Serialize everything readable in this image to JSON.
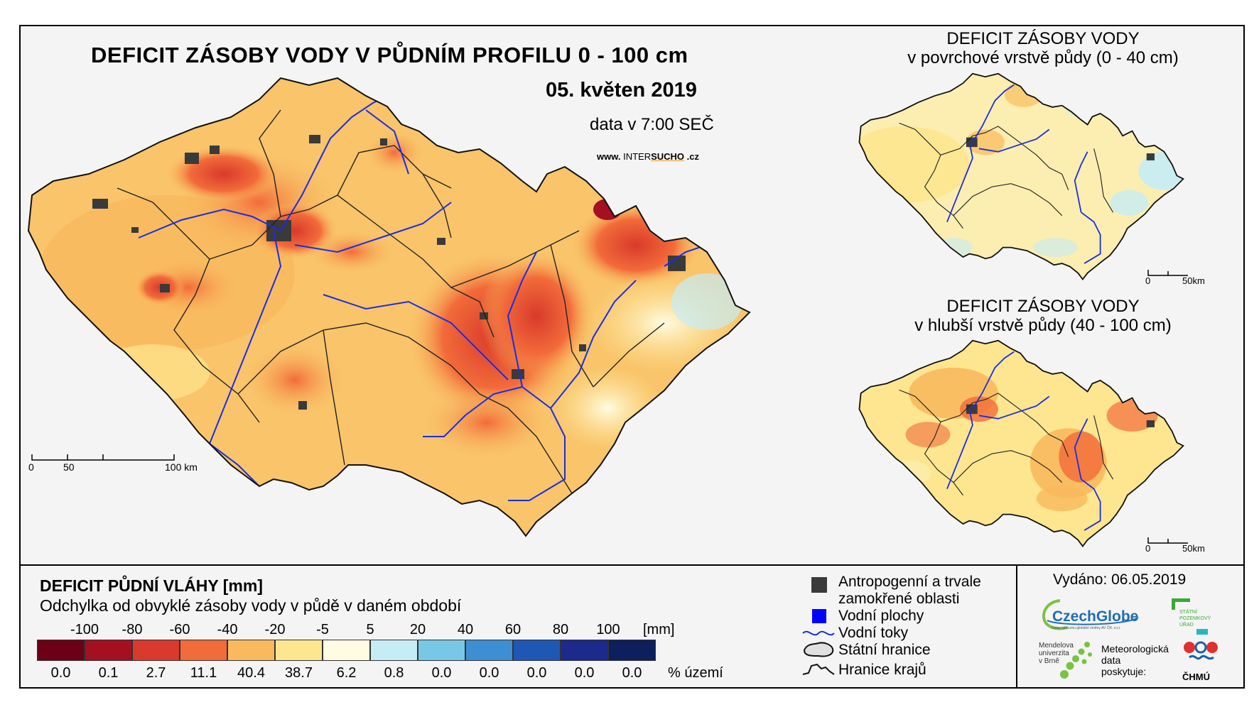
{
  "main_map": {
    "title": "DEFICIT ZÁSOBY VODY V PŮDNÍM PROFILU 0 - 100 cm",
    "date": "05. květen 2019",
    "time": "data v 7:00 SEČ",
    "website_prefix": "www.",
    "website_brand_a": "INTER",
    "website_brand_b": "SUCHO",
    "website_suffix": ".cz",
    "scale_labels": [
      "0",
      "50",
      "100 km"
    ]
  },
  "inset_top": {
    "title_line1": "DEFICIT ZÁSOBY VODY",
    "title_line2": "v povrchové vrstvě půdy (0 - 40 cm)",
    "scale_labels": [
      "0",
      "50km"
    ]
  },
  "inset_bottom": {
    "title_line1": "DEFICIT ZÁSOBY VODY",
    "title_line2": "v hlubší vrstvě půdy (40 - 100 cm)",
    "scale_labels": [
      "0",
      "50km"
    ]
  },
  "legend": {
    "title": "DEFICIT PŮDNÍ VLÁHY [mm]",
    "subtitle": "Odchylka od obvyklé zásoby vody v půdě v daném období",
    "ticks": [
      "-100",
      "-80",
      "-60",
      "-40",
      "-20",
      "-5",
      "5",
      "20",
      "40",
      "60",
      "80",
      "100"
    ],
    "unit": "[mm]",
    "classes": [
      {
        "color": "#6b0016",
        "percent": "0.0"
      },
      {
        "color": "#a50f22",
        "percent": "0.1"
      },
      {
        "color": "#d93a2b",
        "percent": "2.7"
      },
      {
        "color": "#f26b3a",
        "percent": "11.1"
      },
      {
        "color": "#f9b95d",
        "percent": "40.4"
      },
      {
        "color": "#fde68f",
        "percent": "38.7"
      },
      {
        "color": "#fffce3",
        "percent": "6.2"
      },
      {
        "color": "#c6ecf6",
        "percent": "0.8"
      },
      {
        "color": "#77c7e6",
        "percent": "0.0"
      },
      {
        "color": "#3d8fd1",
        "percent": "0.0"
      },
      {
        "color": "#1f57b5",
        "percent": "0.0"
      },
      {
        "color": "#1c2a8c",
        "percent": "0.0"
      },
      {
        "color": "#0d1f5c",
        "percent": "0.0"
      }
    ],
    "percent_unit": "% území"
  },
  "symbol_legend": {
    "urban_line1": "Antropogenní a trvale",
    "urban_line2": "zamokřené oblasti",
    "water_bodies": "Vodní plochy",
    "rivers": "Vodní toky",
    "state_border": "Státní hranice",
    "region_border": "Hranice krajů"
  },
  "footer": {
    "issued": "Vydáno: 06.05.2019",
    "logo_czechglobe": "CzechGlobe",
    "logo_czechglobe_small": "Ústav výzkumu globální změny AV ČR, v.v.i.",
    "logo_spu_line1": "STÁTNÍ",
    "logo_spu_line2": "POZEMKOVÝ",
    "logo_spu_line3": "ÚŘAD",
    "logo_mendel_line1": "Mendelova",
    "logo_mendel_line2": "univerzita",
    "logo_mendel_line3": "v Brně",
    "met_line1": "Meteorologická",
    "met_line2": "data",
    "met_line3": "poskytuje:",
    "logo_chmu": "ČHMÚ"
  },
  "colors": {
    "river": "#1a2ee0",
    "urban": "#3a3a3a",
    "water_body": "#0000ff",
    "czechglobe_blue": "#1e6db4",
    "czechglobe_green": "#7cc242",
    "spu_green": "#3aaa35",
    "chmu_red": "#e03030",
    "chmu_blue": "#1c5fa8"
  }
}
